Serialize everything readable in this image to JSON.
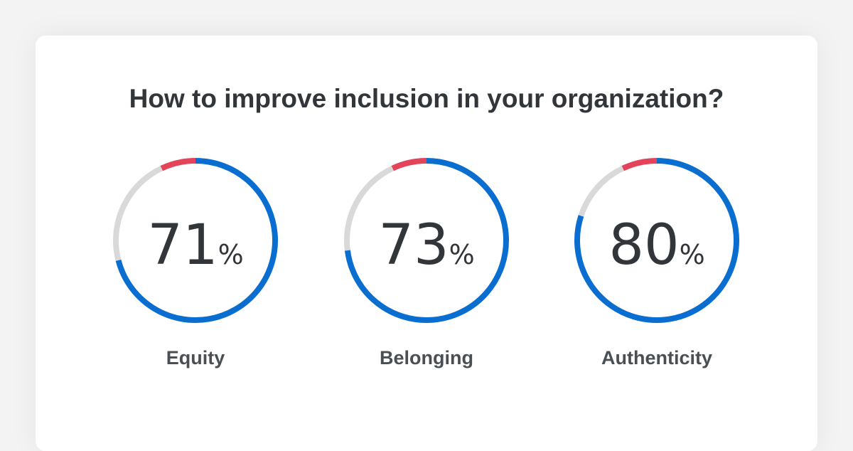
{
  "colors": {
    "positive": "#0a6ed1",
    "negative": "#e34459",
    "neutral": "#d9d9d9",
    "text": "#32363a"
  },
  "chart_data": {
    "type": "donut",
    "title": "How to improve inclusion in your organization?",
    "percent_suffix": "%",
    "series": [
      "positive",
      "neutral",
      "negative"
    ],
    "items": [
      {
        "label": "Equity",
        "value": 71,
        "value_text": "71",
        "neutral": 22,
        "negative": 7
      },
      {
        "label": "Belonging",
        "value": 73,
        "value_text": "73",
        "neutral": 20,
        "negative": 7
      },
      {
        "label": "Authenticity",
        "value": 80,
        "value_text": "80",
        "neutral": 13,
        "negative": 7
      }
    ]
  }
}
